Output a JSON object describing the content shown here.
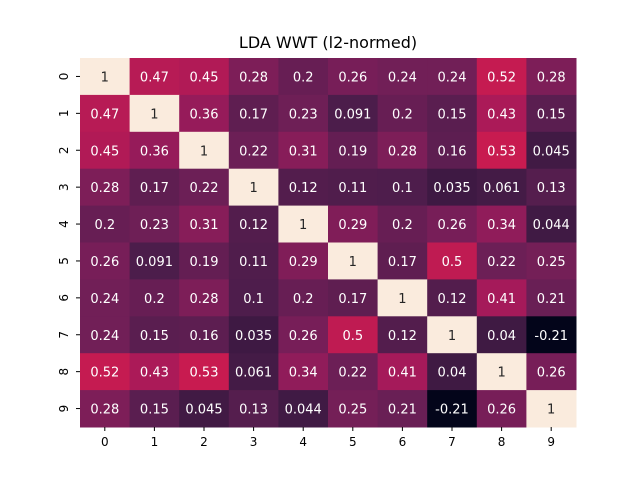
{
  "chart_data": {
    "type": "heatmap",
    "title": "LDA WWT (l2-normed)",
    "x_tick_labels": [
      "0",
      "1",
      "2",
      "3",
      "4",
      "5",
      "6",
      "7",
      "8",
      "9"
    ],
    "y_tick_labels": [
      "0",
      "1",
      "2",
      "3",
      "4",
      "5",
      "6",
      "7",
      "8",
      "9"
    ],
    "values": [
      [
        1,
        0.47,
        0.45,
        0.28,
        0.2,
        0.26,
        0.24,
        0.24,
        0.52,
        0.28
      ],
      [
        0.47,
        1,
        0.36,
        0.17,
        0.23,
        0.091,
        0.2,
        0.15,
        0.43,
        0.15
      ],
      [
        0.45,
        0.36,
        1,
        0.22,
        0.31,
        0.19,
        0.28,
        0.16,
        0.53,
        0.045
      ],
      [
        0.28,
        0.17,
        0.22,
        1,
        0.12,
        0.11,
        0.1,
        0.035,
        0.061,
        0.13
      ],
      [
        0.2,
        0.23,
        0.31,
        0.12,
        1,
        0.29,
        0.2,
        0.26,
        0.34,
        0.044
      ],
      [
        0.26,
        0.091,
        0.19,
        0.11,
        0.29,
        1,
        0.17,
        0.5,
        0.22,
        0.25
      ],
      [
        0.24,
        0.2,
        0.28,
        0.1,
        0.2,
        0.17,
        1,
        0.12,
        0.41,
        0.21
      ],
      [
        0.24,
        0.15,
        0.16,
        0.035,
        0.26,
        0.5,
        0.12,
        1,
        0.04,
        -0.21
      ],
      [
        0.52,
        0.43,
        0.53,
        0.061,
        0.34,
        0.22,
        0.41,
        0.04,
        1,
        0.26
      ],
      [
        0.28,
        0.15,
        0.045,
        0.13,
        0.044,
        0.25,
        0.21,
        -0.21,
        0.26,
        1
      ]
    ],
    "value_range": [
      -0.21,
      1
    ],
    "colormap": "rocket",
    "annotations": true,
    "grid": false,
    "legend": "none"
  }
}
